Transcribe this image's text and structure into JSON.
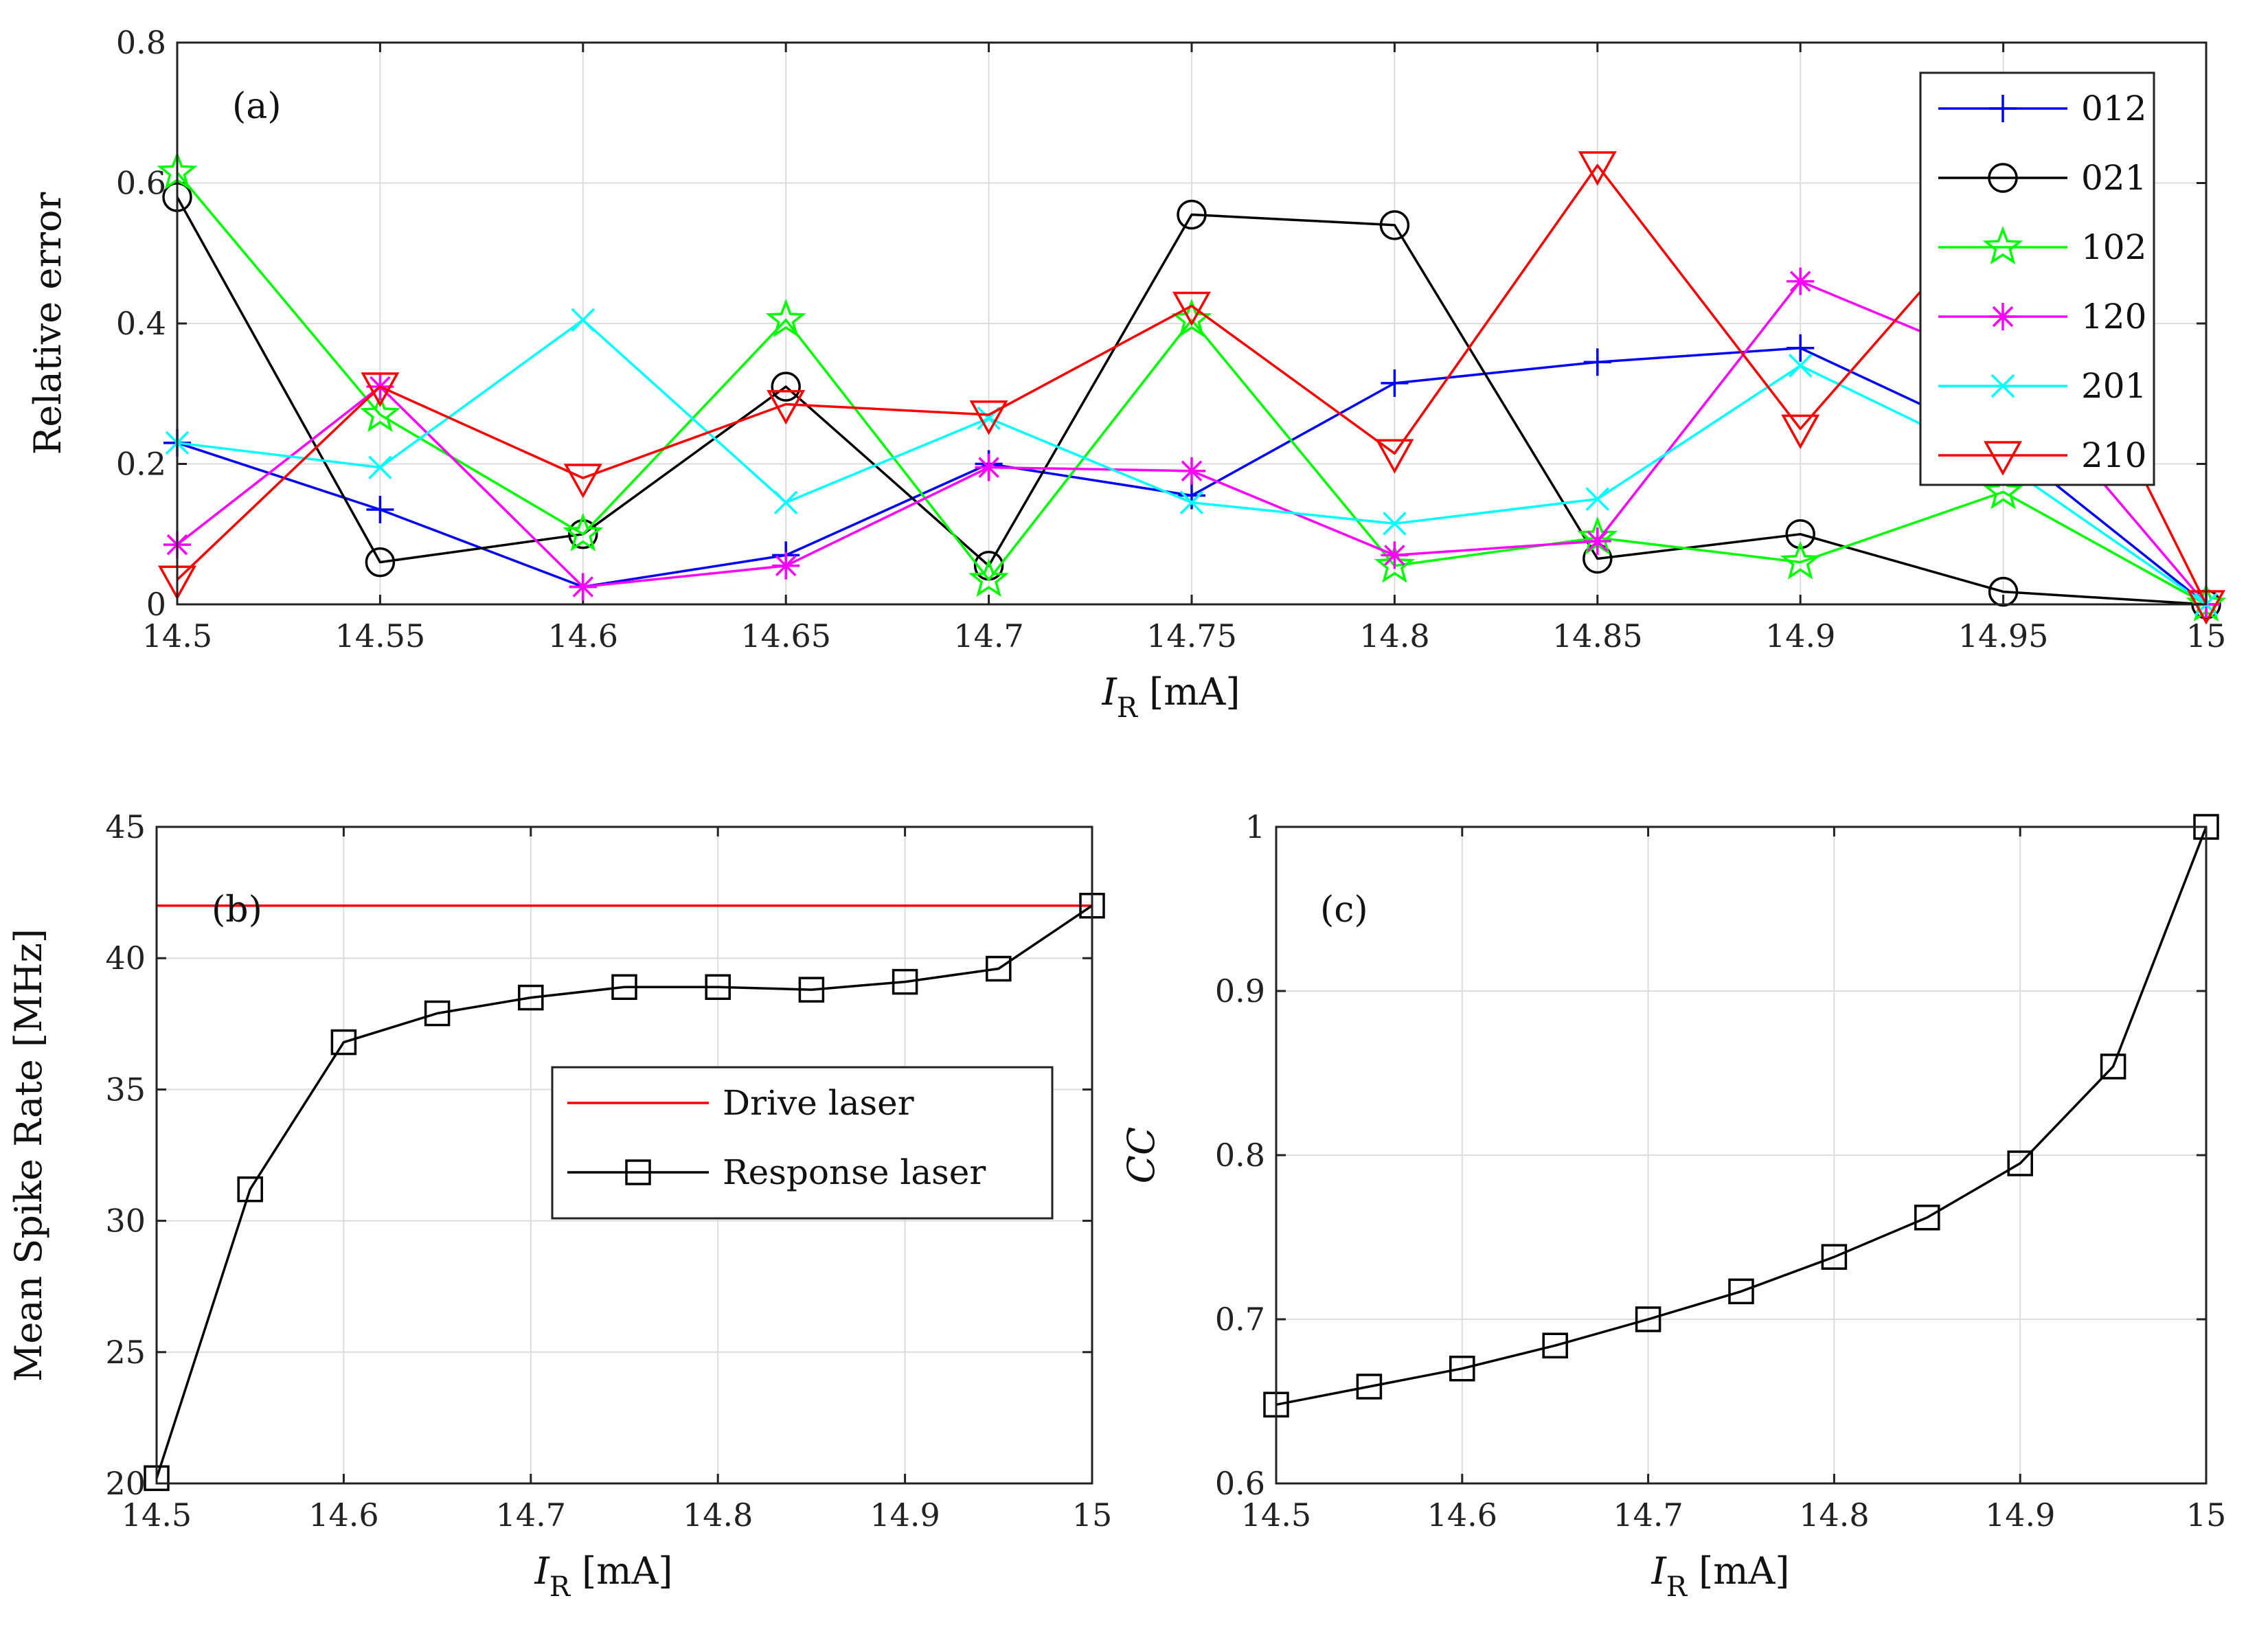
{
  "chart_data": [
    {
      "type": "line",
      "panel_label": "(a)",
      "xlabel": "I",
      "xlabel_sub": "R",
      "xlabel_unit": " [mA]",
      "ylabel": "Relative error",
      "xlim": [
        14.5,
        15
      ],
      "ylim": [
        0,
        0.8
      ],
      "xticks": [
        14.5,
        14.55,
        14.6,
        14.65,
        14.7,
        14.75,
        14.8,
        14.85,
        14.9,
        14.95,
        15
      ],
      "xtick_labels": [
        "14.5",
        "14.55",
        "14.6",
        "14.65",
        "14.7",
        "14.75",
        "14.8",
        "14.85",
        "14.9",
        "14.95",
        "15"
      ],
      "yticks": [
        0,
        0.2,
        0.4,
        0.6,
        0.8
      ],
      "ytick_labels": [
        "0",
        "0.2",
        "0.4",
        "0.6",
        "0.8"
      ],
      "grid": true,
      "legend": "top-right",
      "x": [
        14.5,
        14.55,
        14.6,
        14.65,
        14.7,
        14.75,
        14.8,
        14.85,
        14.9,
        14.95,
        15
      ],
      "series": [
        {
          "name": "012",
          "color": "#0000ff",
          "marker": "plus",
          "values": [
            0.23,
            0.135,
            0.025,
            0.07,
            0.2,
            0.155,
            0.315,
            0.345,
            0.365,
            0.23,
            0.0
          ]
        },
        {
          "name": "021",
          "color": "#000000",
          "marker": "circle",
          "values": [
            0.58,
            0.06,
            0.1,
            0.31,
            0.055,
            0.555,
            0.54,
            0.065,
            0.1,
            0.018,
            0.0
          ]
        },
        {
          "name": "102",
          "color": "#00ff00",
          "marker": "star",
          "values": [
            0.615,
            0.27,
            0.1,
            0.405,
            0.035,
            0.405,
            0.055,
            0.095,
            0.06,
            0.16,
            0.0
          ]
        },
        {
          "name": "120",
          "color": "#ff00ff",
          "marker": "asterisk",
          "values": [
            0.085,
            0.31,
            0.025,
            0.055,
            0.195,
            0.19,
            0.07,
            0.09,
            0.46,
            0.34,
            0.0
          ]
        },
        {
          "name": "201",
          "color": "#00ffff",
          "marker": "x",
          "values": [
            0.23,
            0.195,
            0.405,
            0.145,
            0.265,
            0.145,
            0.115,
            0.15,
            0.34,
            0.2,
            0.0
          ]
        },
        {
          "name": "210",
          "color": "#ff0000",
          "marker": "triangle-down",
          "values": [
            0.035,
            0.31,
            0.18,
            0.285,
            0.27,
            0.425,
            0.215,
            0.625,
            0.25,
            0.58,
            0.0
          ]
        }
      ]
    },
    {
      "type": "line",
      "panel_label": "(b)",
      "xlabel": "I",
      "xlabel_sub": "R",
      "xlabel_unit": " [mA]",
      "ylabel": "Mean Spike Rate [MHz]",
      "xlim": [
        14.5,
        15
      ],
      "ylim": [
        20,
        45
      ],
      "xticks": [
        14.5,
        14.6,
        14.7,
        14.8,
        14.9,
        15
      ],
      "xtick_labels": [
        "14.5",
        "14.6",
        "14.7",
        "14.8",
        "14.9",
        "15"
      ],
      "yticks": [
        20,
        25,
        30,
        35,
        40,
        45
      ],
      "ytick_labels": [
        "20",
        "25",
        "30",
        "35",
        "40",
        "45"
      ],
      "grid": true,
      "legend": "center-right",
      "x": [
        14.5,
        14.55,
        14.6,
        14.65,
        14.7,
        14.75,
        14.8,
        14.85,
        14.9,
        14.95,
        15
      ],
      "series": [
        {
          "name": "Drive laser",
          "color": "#ff0000",
          "marker": "none",
          "values": [
            42,
            42,
            42,
            42,
            42,
            42,
            42,
            42,
            42,
            42,
            42
          ]
        },
        {
          "name": "Response laser",
          "color": "#000000",
          "marker": "square",
          "values": [
            20.2,
            31.2,
            36.8,
            37.9,
            38.5,
            38.9,
            38.9,
            38.8,
            39.1,
            39.6,
            42.0
          ]
        }
      ]
    },
    {
      "type": "line",
      "panel_label": "(c)",
      "xlabel": "I",
      "xlabel_sub": "R",
      "xlabel_unit": " [mA]",
      "ylabel": "CC",
      "xlim": [
        14.5,
        15
      ],
      "ylim": [
        0.6,
        1
      ],
      "xticks": [
        14.5,
        14.6,
        14.7,
        14.8,
        14.9,
        15
      ],
      "xtick_labels": [
        "14.5",
        "14.6",
        "14.7",
        "14.8",
        "14.9",
        "15"
      ],
      "yticks": [
        0.6,
        0.7,
        0.8,
        0.9,
        1
      ],
      "ytick_labels": [
        "0.6",
        "0.7",
        "0.8",
        "0.9",
        "1"
      ],
      "grid": true,
      "legend": "none",
      "x": [
        14.5,
        14.55,
        14.6,
        14.65,
        14.7,
        14.75,
        14.8,
        14.85,
        14.9,
        14.95,
        15
      ],
      "series": [
        {
          "name": "CC",
          "color": "#000000",
          "marker": "square",
          "values": [
            0.648,
            0.659,
            0.67,
            0.684,
            0.7,
            0.717,
            0.738,
            0.762,
            0.795,
            0.854,
            1.0
          ]
        }
      ]
    }
  ]
}
